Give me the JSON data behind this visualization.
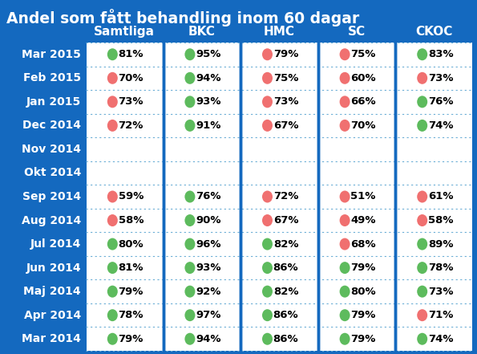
{
  "title": "Andel som fått behandling inom 60 dagar",
  "bg_color": "#1469BF",
  "cell_bg": "#FFFFFF",
  "columns": [
    "Samtliga",
    "BKC",
    "HMC",
    "SC",
    "CKOC"
  ],
  "rows": [
    "Mar 2015",
    "Feb 2015",
    "Jan 2015",
    "Dec 2014",
    "Nov 2014",
    "Okt 2014",
    "Sep 2014",
    "Aug 2014",
    "Jul 2014",
    "Jun 2014",
    "Maj 2014",
    "Apr 2014",
    "Mar 2014"
  ],
  "data": [
    [
      {
        "val": "81%",
        "color": "green"
      },
      {
        "val": "95%",
        "color": "green"
      },
      {
        "val": "79%",
        "color": "red"
      },
      {
        "val": "75%",
        "color": "red"
      },
      {
        "val": "83%",
        "color": "green"
      }
    ],
    [
      {
        "val": "70%",
        "color": "red"
      },
      {
        "val": "94%",
        "color": "green"
      },
      {
        "val": "75%",
        "color": "red"
      },
      {
        "val": "60%",
        "color": "red"
      },
      {
        "val": "73%",
        "color": "red"
      }
    ],
    [
      {
        "val": "73%",
        "color": "red"
      },
      {
        "val": "93%",
        "color": "green"
      },
      {
        "val": "73%",
        "color": "red"
      },
      {
        "val": "66%",
        "color": "red"
      },
      {
        "val": "76%",
        "color": "green"
      }
    ],
    [
      {
        "val": "72%",
        "color": "red"
      },
      {
        "val": "91%",
        "color": "green"
      },
      {
        "val": "67%",
        "color": "red"
      },
      {
        "val": "70%",
        "color": "red"
      },
      {
        "val": "74%",
        "color": "green"
      }
    ],
    [
      null,
      null,
      null,
      null,
      null
    ],
    [
      null,
      null,
      null,
      null,
      null
    ],
    [
      {
        "val": "59%",
        "color": "red"
      },
      {
        "val": "76%",
        "color": "green"
      },
      {
        "val": "72%",
        "color": "red"
      },
      {
        "val": "51%",
        "color": "red"
      },
      {
        "val": "61%",
        "color": "red"
      }
    ],
    [
      {
        "val": "58%",
        "color": "red"
      },
      {
        "val": "90%",
        "color": "green"
      },
      {
        "val": "67%",
        "color": "red"
      },
      {
        "val": "49%",
        "color": "red"
      },
      {
        "val": "58%",
        "color": "red"
      }
    ],
    [
      {
        "val": "80%",
        "color": "green"
      },
      {
        "val": "96%",
        "color": "green"
      },
      {
        "val": "82%",
        "color": "green"
      },
      {
        "val": "68%",
        "color": "red"
      },
      {
        "val": "89%",
        "color": "green"
      }
    ],
    [
      {
        "val": "81%",
        "color": "green"
      },
      {
        "val": "93%",
        "color": "green"
      },
      {
        "val": "86%",
        "color": "green"
      },
      {
        "val": "79%",
        "color": "green"
      },
      {
        "val": "78%",
        "color": "green"
      }
    ],
    [
      {
        "val": "79%",
        "color": "green"
      },
      {
        "val": "92%",
        "color": "green"
      },
      {
        "val": "82%",
        "color": "green"
      },
      {
        "val": "80%",
        "color": "green"
      },
      {
        "val": "73%",
        "color": "green"
      }
    ],
    [
      {
        "val": "78%",
        "color": "green"
      },
      {
        "val": "97%",
        "color": "green"
      },
      {
        "val": "86%",
        "color": "green"
      },
      {
        "val": "79%",
        "color": "green"
      },
      {
        "val": "71%",
        "color": "red"
      }
    ],
    [
      {
        "val": "79%",
        "color": "green"
      },
      {
        "val": "94%",
        "color": "green"
      },
      {
        "val": "86%",
        "color": "green"
      },
      {
        "val": "79%",
        "color": "green"
      },
      {
        "val": "74%",
        "color": "green"
      }
    ]
  ],
  "green_color": "#5DBB5D",
  "red_color": "#F07070",
  "text_color_dark": "#000000",
  "text_color_white": "#FFFFFF",
  "cell_line_color": "#6BAED6",
  "solid_divider_color": "#1469BF",
  "title_fontsize": 13.5,
  "header_fontsize": 11,
  "row_label_fontsize": 10,
  "cell_fontsize": 9.5
}
